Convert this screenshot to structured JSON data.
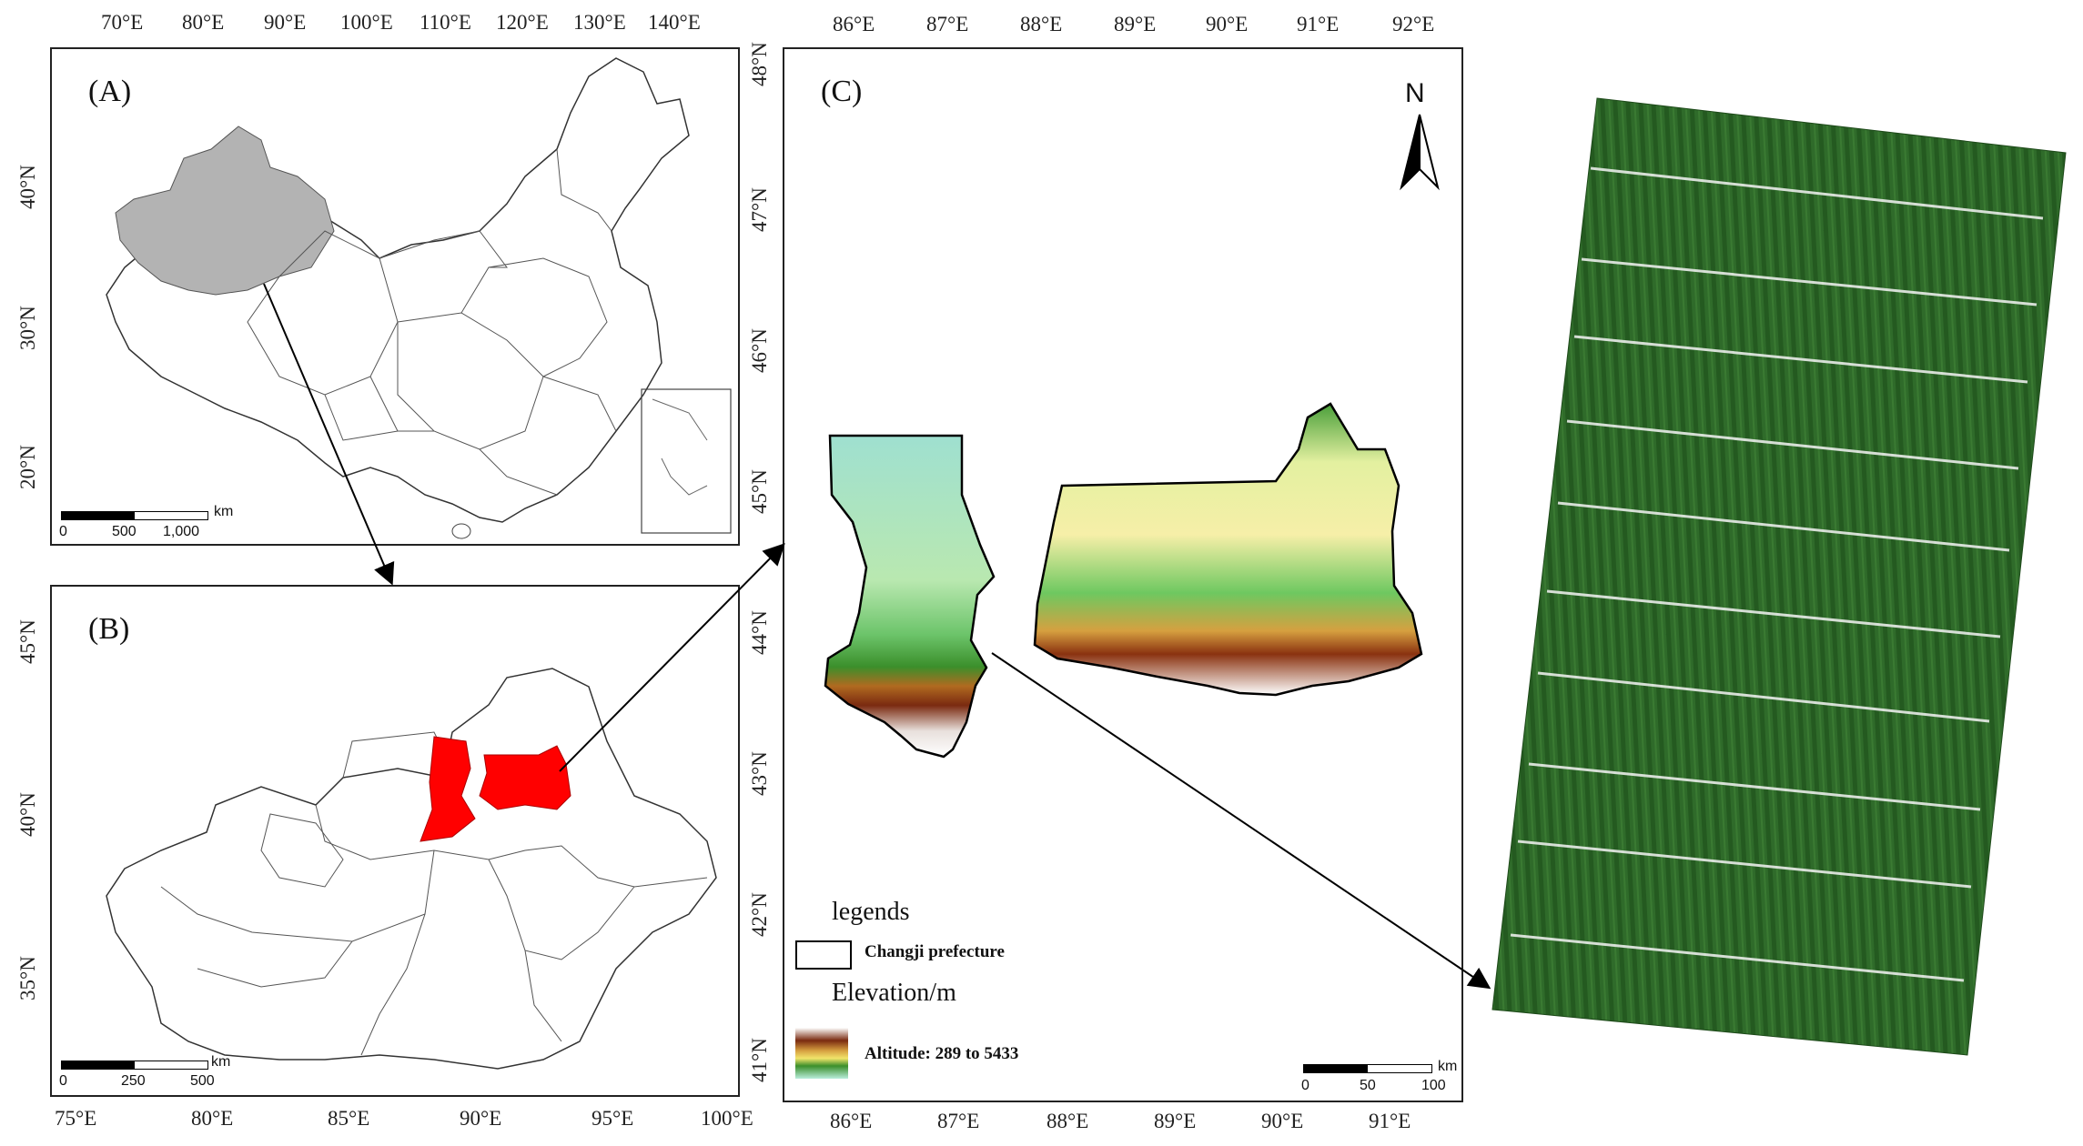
{
  "panel_a": {
    "label": "(A)",
    "top_ticks": [
      "70°E",
      "80°E",
      "90°E",
      "100°E",
      "110°E",
      "120°E",
      "130°E",
      "140°E"
    ],
    "left_ticks": [
      "40°N",
      "30°N",
      "20°N"
    ],
    "scalebar": {
      "unit": "km",
      "labels": [
        "0",
        "500",
        "1,000"
      ]
    }
  },
  "panel_b": {
    "label": "(B)",
    "bottom_ticks": [
      "75°E",
      "80°E",
      "85°E",
      "90°E",
      "95°E",
      "100°E"
    ],
    "left_ticks": [
      "45°N",
      "40°N",
      "35°N"
    ],
    "scalebar": {
      "unit": "km",
      "labels": [
        "0",
        "250",
        "500"
      ]
    }
  },
  "panel_c": {
    "label": "(C)",
    "top_ticks": [
      "86°E",
      "87°E",
      "88°E",
      "89°E",
      "90°E",
      "91°E",
      "92°E"
    ],
    "bottom_ticks": [
      "86°E",
      "87°E",
      "88°E",
      "89°E",
      "90°E",
      "91°E"
    ],
    "left_ticks": [
      "48°N",
      "47°N",
      "46°N",
      "45°N",
      "44°N",
      "43°N",
      "42°N",
      "41°N"
    ],
    "north": "N",
    "legend_title": "legends",
    "legend_boundary": "Changji prefecture",
    "legend_elev_title": "Elevation/m",
    "legend_elev": "Altitude: 289 to 5433",
    "scalebar": {
      "unit": "km",
      "labels": [
        "0",
        "50",
        "100"
      ]
    }
  },
  "colors": {
    "highlight_gray": "#b3b3b3",
    "highlight_red": "#ff0000",
    "crop_green": "#2f6b2a"
  }
}
